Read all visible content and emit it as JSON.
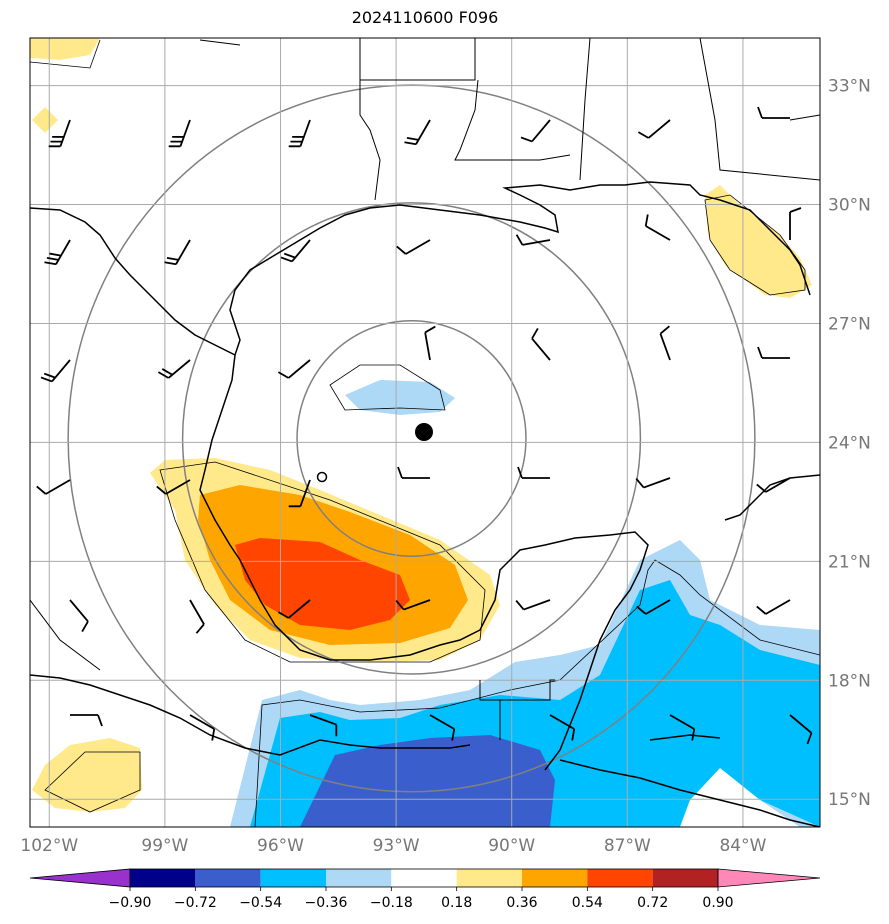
{
  "title": "2024110600 F096",
  "map": {
    "lon_range": [
      -102.5,
      -82.0
    ],
    "lat_range": [
      14.3,
      34.2
    ],
    "lon_ticks": [
      -102,
      -99,
      -96,
      -93,
      -90,
      -87,
      -84
    ],
    "lat_ticks": [
      33,
      30,
      27,
      24,
      21,
      18,
      15
    ],
    "lon_labels": [
      "102°W",
      "99°W",
      "96°W",
      "93°W",
      "90°W",
      "87°W",
      "84°W"
    ],
    "lat_labels": [
      "33°N",
      "30°N",
      "27°N",
      "24°N",
      "21°N",
      "18°N",
      "15°N"
    ],
    "center": {
      "lon": -92.6,
      "lat": 24.1
    },
    "range_rings_deg": [
      3,
      6,
      9
    ]
  },
  "colorbar": {
    "ticks": [
      "−0.90",
      "−0.72",
      "−0.54",
      "−0.36",
      "−0.18",
      "0.18",
      "0.36",
      "0.54",
      "0.72",
      "0.90"
    ],
    "colors": [
      "#9932cc",
      "#00008b",
      "#3a5fcd",
      "#00bfff",
      "#add8f6",
      "#ffffff",
      "#ffe98a",
      "#ffa500",
      "#ff4500",
      "#b22222",
      "#ff88b8"
    ]
  }
}
